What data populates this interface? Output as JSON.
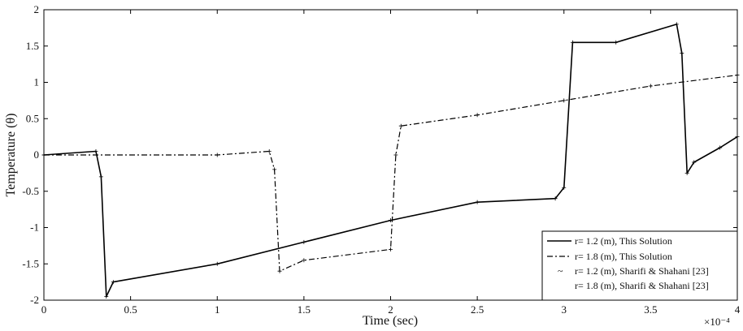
{
  "chart_data": {
    "type": "line",
    "xlabel": "Time (sec)",
    "ylabel": "Temperature (θ)",
    "xlim": [
      0,
      4
    ],
    "ylim": [
      -2,
      2
    ],
    "x_exponent_label": "×10⁻⁴",
    "xticks": [
      0,
      0.5,
      1,
      1.5,
      2,
      2.5,
      3,
      3.5,
      4
    ],
    "xtick_labels": [
      "0",
      "0.5",
      "1",
      "1.5",
      "2",
      "2.5",
      "3",
      "3.5",
      "4"
    ],
    "yticks": [
      -2,
      -1.5,
      -1,
      -0.5,
      0,
      0.5,
      1,
      1.5,
      2
    ],
    "ytick_labels": [
      "-2",
      "-1.5",
      "-1",
      "-0.5",
      "0",
      "0.5",
      "1",
      "1.5",
      "2"
    ],
    "grid": false,
    "legend_position": "bottom-right",
    "legend": [
      {
        "label": "r= 1.2 (m), This Solution",
        "style": "solid"
      },
      {
        "label": "r= 1.8 (m), This Solution",
        "style": "dashdot"
      },
      {
        "label": "r= 1.2 (m), Sharifi & Shahani [23]",
        "style": "plus-marker"
      },
      {
        "label": "r= 1.8 (m), Sharifi & Shahani [23]",
        "style": "plus-marker"
      }
    ],
    "series": [
      {
        "style": "solid",
        "x": [
          0,
          0.3,
          0.33,
          0.36,
          0.4,
          1.0,
          1.5,
          2.0,
          2.5,
          2.95,
          3.0,
          3.05,
          3.3,
          3.65,
          3.68,
          3.71,
          3.75,
          3.9,
          4.0
        ],
        "y": [
          0,
          0.05,
          -0.3,
          -1.95,
          -1.75,
          -1.5,
          -1.2,
          -0.9,
          -0.65,
          -0.6,
          -0.45,
          1.55,
          1.55,
          1.8,
          1.4,
          -0.25,
          -0.1,
          0.1,
          0.25
        ]
      },
      {
        "style": "dashdot",
        "x": [
          0,
          1.0,
          1.3,
          1.33,
          1.36,
          1.5,
          2.0,
          2.03,
          2.06,
          2.5,
          3.0,
          3.5,
          4.0
        ],
        "y": [
          0,
          0,
          0.05,
          -0.2,
          -1.6,
          -1.45,
          -1.3,
          0.0,
          0.4,
          0.55,
          0.75,
          0.95,
          1.1
        ]
      }
    ]
  }
}
